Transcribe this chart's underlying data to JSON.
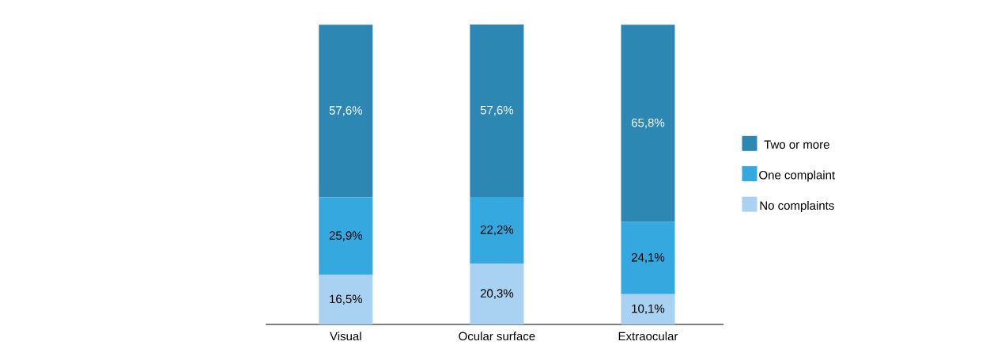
{
  "chart_data": {
    "type": "bar",
    "stacked": true,
    "categories": [
      "Visual",
      "Ocular surface",
      "Extraocular"
    ],
    "series": [
      {
        "name": "No complaints",
        "color": "#a9d1f1",
        "values": [
          16.5,
          20.3,
          10.1
        ],
        "value_labels": [
          "16,5%",
          "20,3%",
          "10,1%"
        ]
      },
      {
        "name": "One complaint",
        "color": "#36a8e0",
        "values": [
          25.9,
          22.2,
          24.1
        ],
        "value_labels": [
          "25,9%",
          "22,2%",
          "24,1%"
        ]
      },
      {
        "name": "Two or more",
        "color": "#2c87b2",
        "values": [
          57.6,
          57.6,
          65.8
        ],
        "value_labels": [
          "57,6%",
          "57,6%",
          "65,8%"
        ]
      }
    ],
    "legend": "right",
    "tick_labels": "x"
  }
}
